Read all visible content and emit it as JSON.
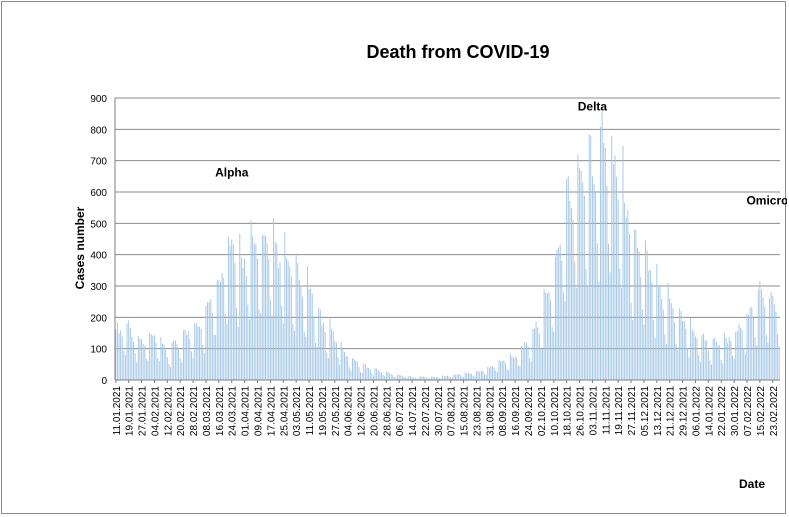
{
  "chart_data": {
    "type": "bar",
    "title": "Death from COVID-19",
    "xlabel": "Date",
    "ylabel": "Cases number",
    "ylim": [
      0,
      900
    ],
    "yticks": [
      0,
      100,
      200,
      300,
      400,
      500,
      600,
      700,
      800,
      900
    ],
    "grid": "horizontal",
    "legend": "none",
    "bar_color": "#9dc3e6",
    "x_start_date": "11.01.2021",
    "x_tick_labels": [
      "11.01.2021",
      "19.01.2021",
      "27.01.2021",
      "04.02.2021",
      "12.02.2021",
      "20.02.2021",
      "28.02.2021",
      "08.03.2021",
      "16.03.2021",
      "24.03.2021",
      "01.04.2021",
      "09.04.2021",
      "17.04.2021",
      "25.04.2021",
      "03.05.2021",
      "11.05.2021",
      "19.05.2021",
      "27.05.2021",
      "04.06.2021",
      "12.06.2021",
      "20.06.2021",
      "28.06.2021",
      "06.07.2021",
      "14.07.2021",
      "22.07.2021",
      "30.07.2021",
      "07.08.2021",
      "15.08.2021",
      "23.08.2021",
      "31.08.2021",
      "08.09.2021",
      "16.09.2021",
      "24.09.2021",
      "02.10.2021",
      "10.10.2021",
      "18.10.2021",
      "26.10.2021",
      "03.11.2021",
      "11.11.2021",
      "19.11.2021",
      "27.11.2021",
      "05.12.2021",
      "13.12.2021",
      "21.12.2021",
      "29.12.2021",
      "06.01.2022",
      "14.01.2022",
      "22.01.2022",
      "30.01.2022",
      "07.02.2022",
      "15.02.2022",
      "23.02.2022"
    ],
    "anchor_values_every_8_days": [
      160,
      175,
      120,
      140,
      90,
      130,
      170,
      210,
      330,
      420,
      390,
      450,
      430,
      400,
      330,
      290,
      190,
      140,
      80,
      50,
      35,
      25,
      15,
      10,
      10,
      10,
      15,
      20,
      25,
      40,
      60,
      80,
      120,
      200,
      340,
      560,
      680,
      720,
      770,
      690,
      480,
      380,
      320,
      250,
      200,
      150,
      120,
      120,
      140,
      200,
      280,
      250
    ],
    "annotations": [
      {
        "label": "Alpha",
        "x_date": "24.03.2021",
        "y": 650
      },
      {
        "label": "Delta",
        "x_date": "03.11.2021",
        "y": 860
      },
      {
        "label": "Omicron",
        "x_date": "22.02.2022",
        "y": 560
      }
    ]
  }
}
